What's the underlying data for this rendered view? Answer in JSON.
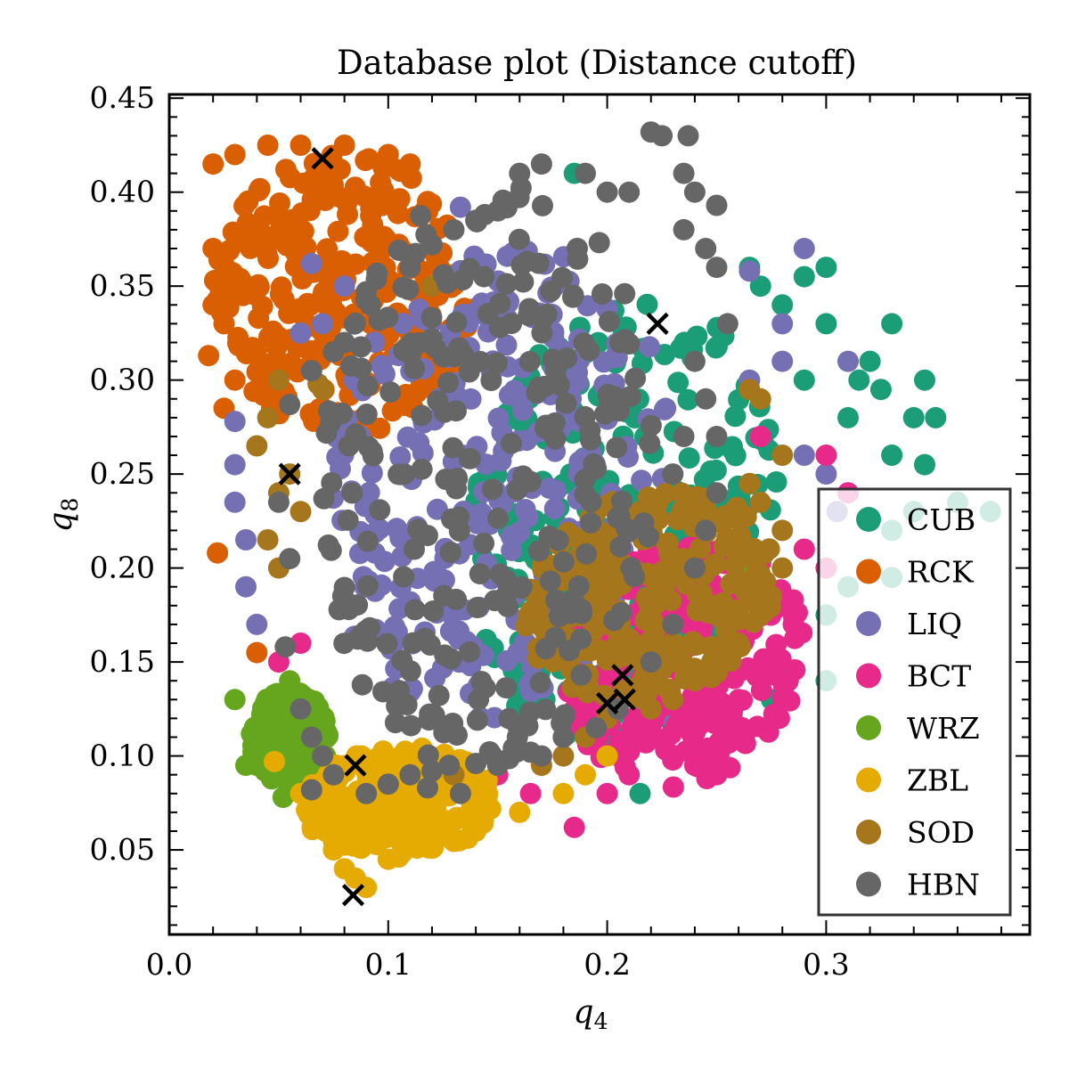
{
  "chart_data": {
    "type": "scatter",
    "title": "Database plot (Distance cutoff)",
    "xlabel": "q",
    "xlabel_sub": "4",
    "ylabel": "q",
    "ylabel_sub": "8",
    "xlim": [
      0.0,
      0.393
    ],
    "ylim": [
      0.005,
      0.452
    ],
    "x_ticks": [
      0.0,
      0.1,
      0.2,
      0.3
    ],
    "x_tick_labels": [
      "0.0",
      "0.1",
      "0.2",
      "0.3"
    ],
    "y_ticks": [
      0.05,
      0.1,
      0.15,
      0.2,
      0.25,
      0.3,
      0.35,
      0.4,
      0.45
    ],
    "y_tick_labels": [
      "0.05",
      "0.10",
      "0.15",
      "0.20",
      "0.25",
      "0.30",
      "0.35",
      "0.40",
      "0.45"
    ],
    "grid": false,
    "legend_position": "center-right",
    "series": [
      {
        "name": "CUB",
        "color": "#1b9e77",
        "region": {
          "cx": 0.21,
          "cy": 0.225,
          "rx": 0.085,
          "ry": 0.13,
          "angle": 0.6
        },
        "points": [
          [
            0.185,
            0.41
          ],
          [
            0.265,
            0.36
          ],
          [
            0.27,
            0.35
          ],
          [
            0.29,
            0.355
          ],
          [
            0.3,
            0.36
          ],
          [
            0.33,
            0.33
          ],
          [
            0.3,
            0.33
          ],
          [
            0.28,
            0.34
          ],
          [
            0.32,
            0.31
          ],
          [
            0.345,
            0.3
          ],
          [
            0.325,
            0.295
          ],
          [
            0.33,
            0.26
          ],
          [
            0.34,
            0.28
          ],
          [
            0.35,
            0.28
          ],
          [
            0.345,
            0.255
          ],
          [
            0.34,
            0.23
          ],
          [
            0.375,
            0.23
          ],
          [
            0.36,
            0.235
          ],
          [
            0.33,
            0.22
          ],
          [
            0.33,
            0.195
          ],
          [
            0.31,
            0.19
          ],
          [
            0.3,
            0.175
          ],
          [
            0.3,
            0.14
          ],
          [
            0.28,
            0.145
          ],
          [
            0.275,
            0.13
          ],
          [
            0.26,
            0.11
          ],
          [
            0.255,
            0.108
          ],
          [
            0.215,
            0.08
          ],
          [
            0.24,
            0.1
          ],
          [
            0.31,
            0.28
          ],
          [
            0.29,
            0.3
          ],
          [
            0.315,
            0.3
          ]
        ]
      },
      {
        "name": "RCK",
        "color": "#d95f02",
        "region": {
          "cx": 0.08,
          "cy": 0.345,
          "rx": 0.06,
          "ry": 0.075,
          "angle": 0
        },
        "points": [
          [
            0.02,
            0.415
          ],
          [
            0.03,
            0.42
          ],
          [
            0.045,
            0.425
          ],
          [
            0.06,
            0.425
          ],
          [
            0.08,
            0.425
          ],
          [
            0.1,
            0.42
          ],
          [
            0.11,
            0.415
          ],
          [
            0.118,
            0.395
          ],
          [
            0.02,
            0.37
          ],
          [
            0.02,
            0.34
          ],
          [
            0.018,
            0.313
          ],
          [
            0.025,
            0.33
          ],
          [
            0.03,
            0.3
          ],
          [
            0.025,
            0.285
          ],
          [
            0.05,
            0.29
          ],
          [
            0.022,
            0.208
          ],
          [
            0.04,
            0.155
          ],
          [
            0.06,
            0.12
          ]
        ]
      },
      {
        "name": "LIQ",
        "color": "#7570b3",
        "region": {
          "cx": 0.15,
          "cy": 0.245,
          "rx": 0.085,
          "ry": 0.13,
          "angle": 0.45
        },
        "points": [
          [
            0.133,
            0.392
          ],
          [
            0.065,
            0.362
          ],
          [
            0.08,
            0.35
          ],
          [
            0.06,
            0.325
          ],
          [
            0.07,
            0.33
          ],
          [
            0.265,
            0.358
          ],
          [
            0.29,
            0.37
          ],
          [
            0.31,
            0.31
          ],
          [
            0.28,
            0.31
          ],
          [
            0.03,
            0.278
          ],
          [
            0.03,
            0.255
          ],
          [
            0.035,
            0.215
          ],
          [
            0.03,
            0.235
          ],
          [
            0.035,
            0.19
          ],
          [
            0.04,
            0.17
          ],
          [
            0.28,
            0.33
          ],
          [
            0.265,
            0.3
          ],
          [
            0.27,
            0.27
          ],
          [
            0.29,
            0.26
          ],
          [
            0.3,
            0.25
          ],
          [
            0.305,
            0.23
          ],
          [
            0.23,
            0.12
          ],
          [
            0.22,
            0.115
          ]
        ]
      },
      {
        "name": "BCT",
        "color": "#e7298a",
        "region": {
          "cx": 0.235,
          "cy": 0.15,
          "rx": 0.06,
          "ry": 0.07,
          "angle": 0.5
        },
        "points": [
          [
            0.27,
            0.27
          ],
          [
            0.3,
            0.26
          ],
          [
            0.31,
            0.24
          ],
          [
            0.32,
            0.225
          ],
          [
            0.29,
            0.21
          ],
          [
            0.3,
            0.2
          ],
          [
            0.285,
            0.17
          ],
          [
            0.275,
            0.145
          ],
          [
            0.26,
            0.13
          ],
          [
            0.24,
            0.12
          ],
          [
            0.23,
            0.1
          ],
          [
            0.21,
            0.09
          ],
          [
            0.2,
            0.08
          ],
          [
            0.185,
            0.062
          ],
          [
            0.165,
            0.08
          ],
          [
            0.15,
            0.09
          ],
          [
            0.06,
            0.16
          ],
          [
            0.05,
            0.15
          ],
          [
            0.25,
            0.09
          ],
          [
            0.24,
            0.095
          ]
        ]
      },
      {
        "name": "WRZ",
        "color": "#66a61e",
        "region": {
          "cx": 0.055,
          "cy": 0.11,
          "rx": 0.018,
          "ry": 0.025,
          "angle": 0
        },
        "points": [
          [
            0.03,
            0.13
          ],
          [
            0.035,
            0.095
          ],
          [
            0.04,
            0.11
          ],
          [
            0.045,
            0.125
          ],
          [
            0.05,
            0.1
          ],
          [
            0.052,
            0.078
          ],
          [
            0.055,
            0.14
          ],
          [
            0.06,
            0.09
          ],
          [
            0.065,
            0.07
          ],
          [
            0.04,
            0.095
          ],
          [
            0.255,
            0.215
          ],
          [
            0.26,
            0.2
          ]
        ]
      },
      {
        "name": "ZBL",
        "color": "#e6ab02",
        "region": {
          "cx": 0.105,
          "cy": 0.075,
          "rx": 0.045,
          "ry": 0.03,
          "angle": 0.25
        },
        "points": [
          [
            0.048,
            0.097
          ],
          [
            0.06,
            0.08
          ],
          [
            0.07,
            0.065
          ],
          [
            0.075,
            0.05
          ],
          [
            0.08,
            0.04
          ],
          [
            0.085,
            0.035
          ],
          [
            0.09,
            0.03
          ],
          [
            0.1,
            0.045
          ],
          [
            0.12,
            0.055
          ],
          [
            0.14,
            0.06
          ],
          [
            0.16,
            0.07
          ],
          [
            0.18,
            0.08
          ],
          [
            0.19,
            0.09
          ],
          [
            0.2,
            0.1
          ],
          [
            0.1,
            0.07
          ],
          [
            0.11,
            0.06
          ]
        ]
      },
      {
        "name": "SOD",
        "color": "#a6761d",
        "region": {
          "cx": 0.22,
          "cy": 0.185,
          "rx": 0.065,
          "ry": 0.06,
          "angle": 0.55
        },
        "points": [
          [
            0.05,
            0.3
          ],
          [
            0.07,
            0.295
          ],
          [
            0.04,
            0.265
          ],
          [
            0.045,
            0.28
          ],
          [
            0.05,
            0.24
          ],
          [
            0.045,
            0.215
          ],
          [
            0.05,
            0.2
          ],
          [
            0.055,
            0.25
          ],
          [
            0.06,
            0.23
          ],
          [
            0.27,
            0.29
          ],
          [
            0.265,
            0.295
          ],
          [
            0.28,
            0.26
          ],
          [
            0.265,
            0.245
          ],
          [
            0.27,
            0.235
          ],
          [
            0.28,
            0.22
          ],
          [
            0.28,
            0.2
          ],
          [
            0.275,
            0.185
          ],
          [
            0.27,
            0.175
          ],
          [
            0.26,
            0.16
          ],
          [
            0.25,
            0.15
          ],
          [
            0.24,
            0.14
          ],
          [
            0.23,
            0.13
          ],
          [
            0.22,
            0.125
          ],
          [
            0.2,
            0.12
          ],
          [
            0.19,
            0.11
          ],
          [
            0.18,
            0.1
          ],
          [
            0.17,
            0.095
          ],
          [
            0.13,
            0.09
          ],
          [
            0.12,
            0.35
          ],
          [
            0.068,
            0.298
          ]
        ]
      },
      {
        "name": "HBN",
        "color": "#666666",
        "region": {
          "cx": 0.145,
          "cy": 0.25,
          "rx": 0.08,
          "ry": 0.16,
          "angle": 0.3
        },
        "points": [
          [
            0.22,
            0.432
          ],
          [
            0.225,
            0.43
          ],
          [
            0.237,
            0.43
          ],
          [
            0.17,
            0.415
          ],
          [
            0.19,
            0.41
          ],
          [
            0.2,
            0.4
          ],
          [
            0.21,
            0.4
          ],
          [
            0.235,
            0.41
          ],
          [
            0.24,
            0.4
          ],
          [
            0.25,
            0.393
          ],
          [
            0.235,
            0.38
          ],
          [
            0.245,
            0.37
          ],
          [
            0.16,
            0.41
          ],
          [
            0.15,
            0.39
          ],
          [
            0.14,
            0.385
          ],
          [
            0.13,
            0.38
          ],
          [
            0.12,
            0.372
          ],
          [
            0.11,
            0.36
          ],
          [
            0.09,
            0.347
          ],
          [
            0.08,
            0.32
          ],
          [
            0.075,
            0.315
          ],
          [
            0.065,
            0.305
          ],
          [
            0.055,
            0.287
          ],
          [
            0.05,
            0.235
          ],
          [
            0.055,
            0.205
          ],
          [
            0.053,
            0.158
          ],
          [
            0.06,
            0.125
          ],
          [
            0.065,
            0.11
          ],
          [
            0.07,
            0.1
          ],
          [
            0.065,
            0.082
          ],
          [
            0.075,
            0.09
          ],
          [
            0.09,
            0.08
          ],
          [
            0.1,
            0.085
          ],
          [
            0.11,
            0.09
          ],
          [
            0.118,
            0.083
          ],
          [
            0.133,
            0.08
          ],
          [
            0.15,
            0.095
          ],
          [
            0.17,
            0.1
          ],
          [
            0.18,
            0.11
          ],
          [
            0.195,
            0.115
          ],
          [
            0.205,
            0.125
          ],
          [
            0.22,
            0.15
          ],
          [
            0.23,
            0.17
          ],
          [
            0.24,
            0.2
          ],
          [
            0.245,
            0.22
          ],
          [
            0.25,
            0.24
          ],
          [
            0.25,
            0.27
          ],
          [
            0.245,
            0.29
          ],
          [
            0.24,
            0.31
          ],
          [
            0.255,
            0.33
          ],
          [
            0.25,
            0.36
          ],
          [
            0.18,
            0.11
          ],
          [
            0.165,
            0.102
          ],
          [
            0.14,
            0.096
          ],
          [
            0.12,
            0.092
          ],
          [
            0.23,
            0.25
          ],
          [
            0.235,
            0.27
          ]
        ]
      }
    ],
    "markers": {
      "symbol": "x",
      "color": "#000000",
      "points": [
        [
          0.07,
          0.418
        ],
        [
          0.055,
          0.25
        ],
        [
          0.223,
          0.33
        ],
        [
          0.085,
          0.095
        ],
        [
          0.084,
          0.026
        ],
        [
          0.2,
          0.128
        ],
        [
          0.207,
          0.143
        ],
        [
          0.208,
          0.13
        ]
      ]
    }
  }
}
